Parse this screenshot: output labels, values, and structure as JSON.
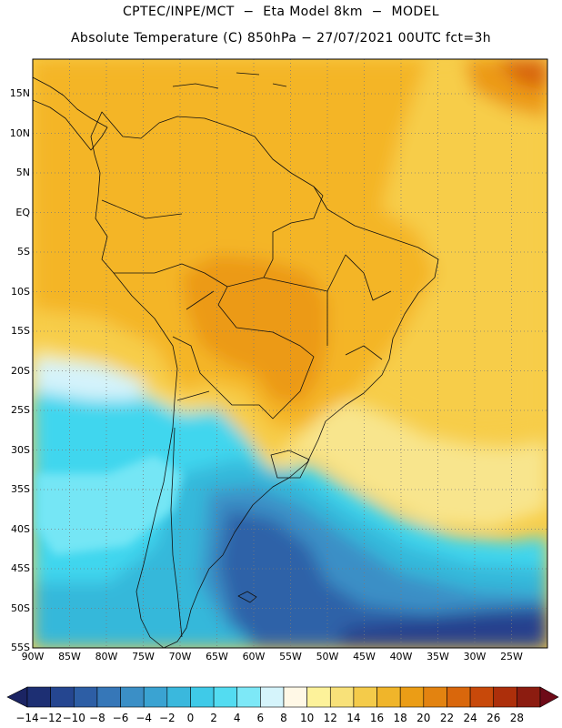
{
  "header": {
    "line1": "CPTEC/INPE/MCT  −  Eta Model 8km  −  MODEL",
    "line2": "Absolute Temperature (C) 850hPa − 27/07/2021 00UTC fct=3h"
  },
  "map": {
    "lat_labels": [
      "15N",
      "10N",
      "5N",
      "EQ",
      "5S",
      "10S",
      "15S",
      "20S",
      "25S",
      "30S",
      "35S",
      "40S",
      "45S",
      "50S",
      "55S"
    ],
    "lon_labels": [
      "90W",
      "85W",
      "80W",
      "75W",
      "70W",
      "65W",
      "60W",
      "55W",
      "50W",
      "45W",
      "40W",
      "35W",
      "30W",
      "25W"
    ],
    "field_colors": {
      "very_warm": "#d8650f",
      "warm": "#ec9a14",
      "mild_warm": "#f4b526",
      "mild": "#f7cd48",
      "cool_yellow": "#f8e58d",
      "pale": "#fdf6d8",
      "very_pale_blue": "#d4f3fb",
      "cyan_light": "#74e6f5",
      "cyan": "#3fd6ee",
      "blue_light": "#36b8da",
      "blue": "#3b8fc6",
      "blue_dark": "#2f62a8",
      "navy": "#283f8d"
    }
  },
  "colorbar": {
    "labels": [
      "-14",
      "-12",
      "-10",
      "-8",
      "-6",
      "-4",
      "-2",
      "0",
      "2",
      "4",
      "6",
      "8",
      "10",
      "12",
      "14",
      "16",
      "18",
      "20",
      "22",
      "24",
      "26",
      "28"
    ],
    "colors": [
      "#1d2f73",
      "#254690",
      "#2d5ea5",
      "#3677b8",
      "#3b8fc6",
      "#3aa3d2",
      "#3ab8dd",
      "#3fcae8",
      "#53dcf1",
      "#7de8f7",
      "#d5f4fb",
      "#fff8e6",
      "#fdf29a",
      "#f8e179",
      "#f4cb4a",
      "#f0b52a",
      "#eb9d16",
      "#e38310",
      "#d9670c",
      "#c8490a",
      "#ad2f0b",
      "#8c1c10"
    ],
    "left_arrow_color": "#1b2463",
    "right_arrow_color": "#6e0a18"
  }
}
